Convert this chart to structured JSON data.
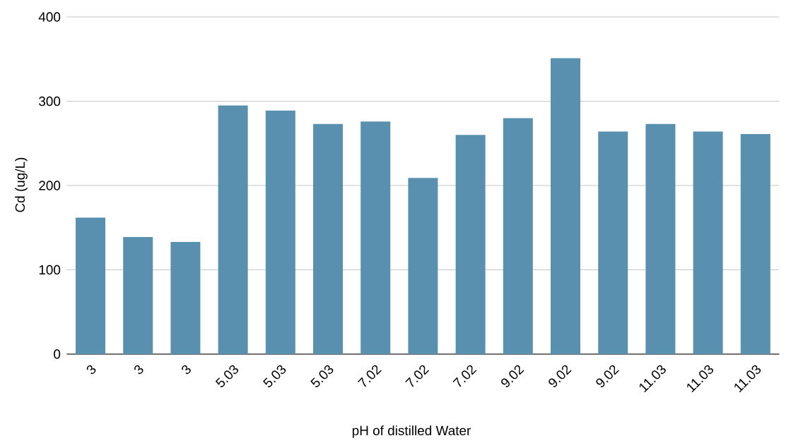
{
  "chart_data": {
    "type": "bar",
    "xlabel": "pH of distilled Water",
    "ylabel": "Cd (ug/L)",
    "categories": [
      "3",
      "3",
      "3",
      "5.03",
      "5.03",
      "5.03",
      "7.02",
      "7.02",
      "7.02",
      "9.02",
      "9.02",
      "9.02",
      "11.03",
      "11.03",
      "11.03"
    ],
    "values": [
      162,
      139,
      133,
      295,
      289,
      273,
      276,
      209,
      260,
      280,
      351,
      264,
      273,
      264,
      261
    ],
    "color": "#5990b0",
    "ylim": [
      0,
      400
    ],
    "yticks": [
      0,
      100,
      200,
      300,
      400
    ],
    "grid": "y"
  }
}
